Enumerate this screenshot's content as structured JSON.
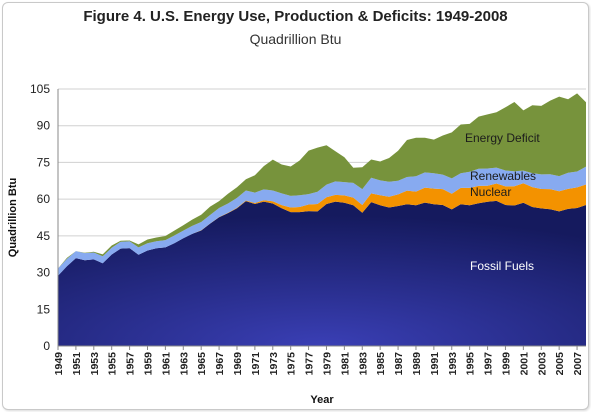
{
  "chart_data": {
    "type": "area",
    "stacked": true,
    "title": "Figure 4. U.S. Energy Use, Production & Deficits: 1949-2008",
    "subtitle": "Quadrillion Btu",
    "xlabel": "Year",
    "ylabel": "Quadrillion Btu",
    "ylim": [
      0,
      105
    ],
    "yticks": [
      0,
      15,
      30,
      45,
      60,
      75,
      90,
      105
    ],
    "xticks": [
      1949,
      1951,
      1953,
      1955,
      1957,
      1959,
      1961,
      1963,
      1965,
      1967,
      1969,
      1971,
      1973,
      1975,
      1977,
      1979,
      1981,
      1983,
      1985,
      1987,
      1989,
      1991,
      1993,
      1995,
      1997,
      1999,
      2001,
      2003,
      2005,
      2007
    ],
    "grid": "horizontal",
    "legend": "inline labels",
    "x": [
      1949,
      1950,
      1951,
      1952,
      1953,
      1954,
      1955,
      1956,
      1957,
      1958,
      1959,
      1960,
      1961,
      1962,
      1963,
      1964,
      1965,
      1966,
      1967,
      1968,
      1969,
      1970,
      1971,
      1972,
      1973,
      1974,
      1975,
      1976,
      1977,
      1978,
      1979,
      1980,
      1981,
      1982,
      1983,
      1984,
      1985,
      1986,
      1987,
      1988,
      1989,
      1990,
      1991,
      1992,
      1993,
      1994,
      1995,
      1996,
      1997,
      1998,
      1999,
      2000,
      2001,
      2002,
      2003,
      2004,
      2005,
      2006,
      2007,
      2008
    ],
    "series": [
      {
        "name": "Fossil Fuels",
        "color": "#23288a",
        "values": [
          28.7,
          32.6,
          35.9,
          35.0,
          35.4,
          33.8,
          37.4,
          39.8,
          40.0,
          37.3,
          39.0,
          39.9,
          40.3,
          42.0,
          44.0,
          45.8,
          47.2,
          50.0,
          52.6,
          54.3,
          56.3,
          59.2,
          58.0,
          59.0,
          58.2,
          56.3,
          54.7,
          54.7,
          55.1,
          55.0,
          58.0,
          59.0,
          58.5,
          57.5,
          54.4,
          58.8,
          57.5,
          56.6,
          57.2,
          57.9,
          57.5,
          58.6,
          57.9,
          57.6,
          55.8,
          57.9,
          57.5,
          58.3,
          58.9,
          59.3,
          57.6,
          57.4,
          58.5,
          56.8,
          56.2,
          55.9,
          55.0,
          56.0,
          56.4,
          57.6
        ]
      },
      {
        "name": "Nuclear",
        "color": "#f39200",
        "values": [
          0,
          0,
          0,
          0,
          0,
          0,
          0,
          0,
          0,
          0,
          0,
          0,
          0,
          0,
          0,
          0,
          0.05,
          0.06,
          0.09,
          0.14,
          0.15,
          0.24,
          0.41,
          0.58,
          0.91,
          1.27,
          1.9,
          2.11,
          2.7,
          3.02,
          2.78,
          2.74,
          3.01,
          3.13,
          3.2,
          3.55,
          4.08,
          4.38,
          4.75,
          5.59,
          5.6,
          6.1,
          6.4,
          6.5,
          6.4,
          6.7,
          7.1,
          7.1,
          6.6,
          7.1,
          7.6,
          7.9,
          8.0,
          8.1,
          7.96,
          8.2,
          8.2,
          8.2,
          8.4,
          8.4
        ]
      },
      {
        "name": "Renewables",
        "color": "#87aaf0",
        "values": [
          2.97,
          2.98,
          2.89,
          2.97,
          2.82,
          2.83,
          2.74,
          2.77,
          2.79,
          3.0,
          3.0,
          2.93,
          2.95,
          3.14,
          3.13,
          3.25,
          3.4,
          3.48,
          3.69,
          3.79,
          4.07,
          4.08,
          4.27,
          4.4,
          4.43,
          4.77,
          4.72,
          4.77,
          4.25,
          5.04,
          5.17,
          5.49,
          5.47,
          5.99,
          6.49,
          6.43,
          6.08,
          6.13,
          5.6,
          5.57,
          6.29,
          6.21,
          6.24,
          5.92,
          6.26,
          5.98,
          6.56,
          7.01,
          7.02,
          6.49,
          6.52,
          6.1,
          5.16,
          5.73,
          5.94,
          6.06,
          6.2,
          6.6,
          6.5,
          7.3
        ]
      },
      {
        "name": "Energy Deficit",
        "color": "#77933c",
        "values": [
          0.0,
          0.4,
          0.0,
          0.1,
          0.3,
          0.8,
          0.9,
          0.4,
          0.3,
          1.2,
          1.5,
          1.5,
          1.7,
          2.0,
          2.2,
          2.6,
          3.0,
          3.4,
          2.8,
          4.0,
          4.3,
          4.6,
          7.1,
          9.5,
          12.6,
          11.8,
          12.0,
          14.2,
          17.8,
          18.0,
          16.1,
          12.3,
          10.1,
          6.2,
          8.9,
          7.4,
          7.7,
          9.7,
          12.2,
          15.1,
          15.7,
          14.2,
          13.8,
          16.0,
          18.8,
          19.9,
          19.6,
          21.3,
          22.1,
          22.6,
          25.8,
          28.3,
          24.6,
          27.7,
          28.0,
          30.1,
          32.5,
          30.0,
          31.9,
          26.3
        ]
      }
    ]
  }
}
